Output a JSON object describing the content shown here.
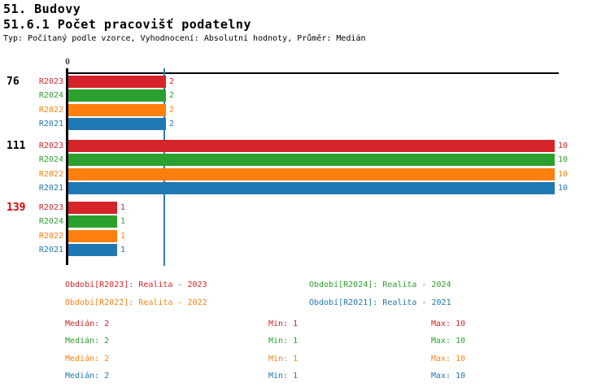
{
  "header": {
    "title": "51. Budovy",
    "subtitle": "51.6.1 Počet pracovišť podatelny",
    "meta": "Typ: Počítaný podle vzorce, Vyhodnocení: Absolutní hodnoty, Průměr: Medián"
  },
  "colors": {
    "red": "#d5242a",
    "green": "#2ca02c",
    "orange": "#ff7f0e",
    "blue": "#1f77b4",
    "black": "#000000",
    "highlight": "#dd0000",
    "median_line": "#2e7cb8",
    "axis": "#000000"
  },
  "chart_data": {
    "type": "bar",
    "orientation": "horizontal",
    "title": "51.6.1 Počet pracovišť podatelny",
    "categories": [
      "76",
      "111",
      "139"
    ],
    "category_label_colors": [
      "black",
      "black",
      "highlight"
    ],
    "series": [
      {
        "name": "R2023",
        "color_key": "red",
        "values": [
          2,
          10,
          1
        ]
      },
      {
        "name": "R2024",
        "color_key": "green",
        "values": [
          2,
          10,
          1
        ]
      },
      {
        "name": "R2022",
        "color_key": "orange",
        "values": [
          2,
          10,
          1
        ]
      },
      {
        "name": "R2021",
        "color_key": "blue",
        "values": [
          2,
          10,
          1
        ]
      }
    ],
    "xlim": [
      0,
      10
    ],
    "axis_origin_label": "0",
    "median_line_value": 2,
    "grid": false,
    "value_labels_shown": true
  },
  "legend": {
    "items": [
      {
        "text": "Období[R2023]: Realita - 2023",
        "color_key": "red"
      },
      {
        "text": "Období[R2024]: Realita - 2024",
        "color_key": "green"
      },
      {
        "text": "Období[R2022]: Realita - 2022",
        "color_key": "orange"
      },
      {
        "text": "Období[R2021]: Realita - 2021",
        "color_key": "blue"
      }
    ]
  },
  "stats": {
    "rows": [
      {
        "series": "R2023",
        "color_key": "red",
        "median": "Medián: 2",
        "min": "Min: 1",
        "max": "Max: 10"
      },
      {
        "series": "R2024",
        "color_key": "green",
        "median": "Medián: 2",
        "min": "Min: 1",
        "max": "Max: 10"
      },
      {
        "series": "R2022",
        "color_key": "orange",
        "median": "Medián: 2",
        "min": "Min: 1",
        "max": "Max: 10"
      },
      {
        "series": "R2021",
        "color_key": "blue",
        "median": "Medián: 2",
        "min": "Min: 1",
        "max": "Max: 10"
      }
    ]
  }
}
